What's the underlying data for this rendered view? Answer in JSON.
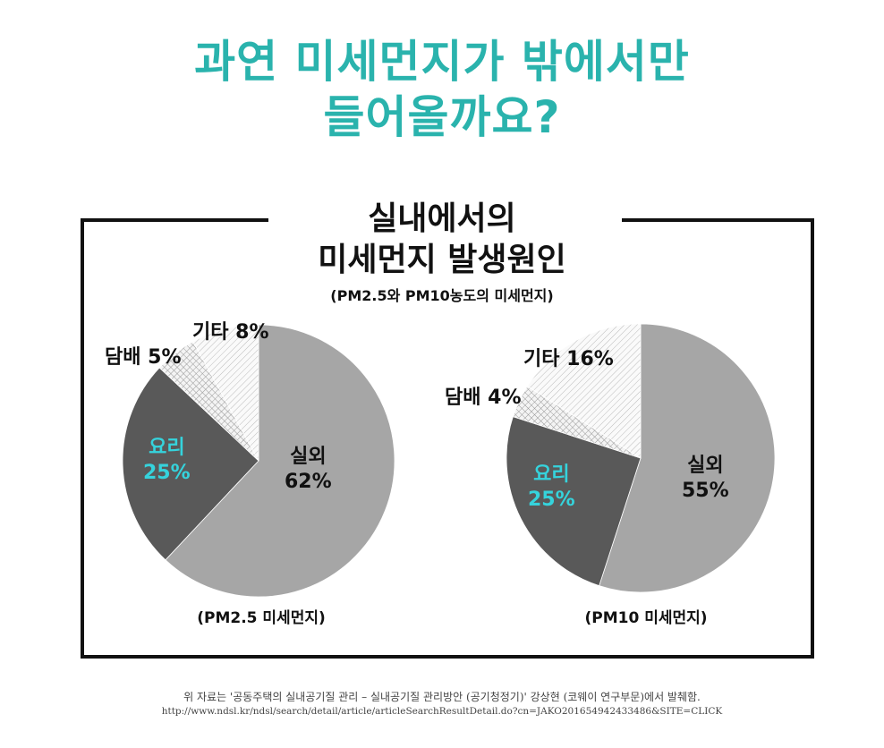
{
  "title": {
    "line1": "과연 미세먼지가 밖에서만",
    "line2": "들어올까요?"
  },
  "subtitle": {
    "line1": "실내에서의",
    "line2": "미세먼지 발생원인",
    "note": "(PM2.5와 PM10농도의 미세먼지)"
  },
  "colors": {
    "title": "#2ab3ad",
    "highlight": "#35d3dc",
    "outdoor": "#a6a6a6",
    "cooking": "#595959"
  },
  "chart_data": [
    {
      "type": "pie",
      "caption": "(PM2.5 미세먼지)",
      "start": "12 o'clock, clockwise",
      "slices": [
        {
          "name": "실외",
          "value": 62,
          "label": "62%",
          "fill": "solid-light-gray"
        },
        {
          "name": "요리",
          "value": 25,
          "label": "25%",
          "fill": "solid-dark-gray"
        },
        {
          "name": "담배",
          "value": 5,
          "label": "5%",
          "fill": "crosshatch"
        },
        {
          "name": "기타",
          "value": 8,
          "label": "8%",
          "fill": "diagonal-hatch"
        }
      ]
    },
    {
      "type": "pie",
      "caption": "(PM10 미세먼지)",
      "start": "12 o'clock, clockwise",
      "slices": [
        {
          "name": "실외",
          "value": 55,
          "label": "55%",
          "fill": "solid-light-gray"
        },
        {
          "name": "요리",
          "value": 25,
          "label": "25%",
          "fill": "solid-dark-gray"
        },
        {
          "name": "담배",
          "value": 4,
          "label": "4%",
          "fill": "crosshatch"
        },
        {
          "name": "기타",
          "value": 16,
          "label": "16%",
          "fill": "diagonal-hatch"
        }
      ]
    }
  ],
  "footer": {
    "source": "위 자료는 '공동주택의 실내공기질 관리 – 실내공기질 관리방안 (공기청정기)' 강상현 (코웨이 연구부문)에서 발췌함.",
    "url": "http://www.ndsl.kr/ndsl/search/detail/article/articleSearchResultDetail.do?cn=JAKO201654942433486&SITE=CLICK"
  }
}
